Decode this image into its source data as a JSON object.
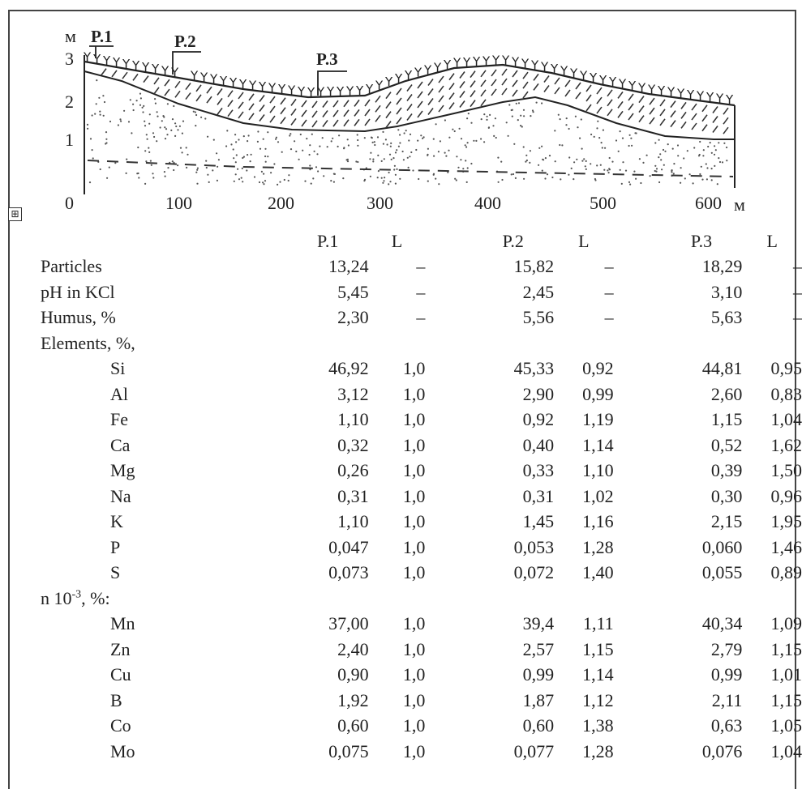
{
  "figure": {
    "y_unit": "м",
    "x_unit": "м",
    "y_ticks": [
      "1",
      "2",
      "3"
    ],
    "x_ticks": [
      "0",
      "100",
      "200",
      "300",
      "400",
      "500",
      "600"
    ],
    "point_labels": [
      "P.1",
      "P.2",
      "P.3"
    ],
    "move_handle_icon": "move-cross-icon",
    "move_handle_glyph": "⊞"
  },
  "table": {
    "headers": [
      "P.1",
      "L",
      "P.2",
      "L",
      "P.3",
      "L"
    ],
    "rows": [
      {
        "name": "Particles",
        "indent": false,
        "v": [
          "13,24",
          "–",
          "15,82",
          "–",
          "18,29",
          "–"
        ]
      },
      {
        "name": "pH in KCl",
        "indent": false,
        "v": [
          "5,45",
          "–",
          "2,45",
          "–",
          "3,10",
          "–"
        ]
      },
      {
        "name": "Humus, %",
        "indent": false,
        "v": [
          "2,30",
          "–",
          "5,56",
          "–",
          "5,63",
          "–"
        ]
      },
      {
        "name": "Elements, %,",
        "indent": false,
        "v": [
          "",
          "",
          "",
          "",
          "",
          ""
        ]
      },
      {
        "name": "Si",
        "indent": true,
        "v": [
          "46,92",
          "1,0",
          "45,33",
          "0,92",
          "44,81",
          "0,95"
        ]
      },
      {
        "name": "Al",
        "indent": true,
        "v": [
          "3,12",
          "1,0",
          "2,90",
          "0,99",
          "2,60",
          "0,83"
        ]
      },
      {
        "name": "Fe",
        "indent": true,
        "v": [
          "1,10",
          "1,0",
          "0,92",
          "1,19",
          "1,15",
          "1,04"
        ]
      },
      {
        "name": "Ca",
        "indent": true,
        "v": [
          "0,32",
          "1,0",
          "0,40",
          "1,14",
          "0,52",
          "1,62"
        ]
      },
      {
        "name": "Mg",
        "indent": true,
        "v": [
          "0,26",
          "1,0",
          "0,33",
          "1,10",
          "0,39",
          "1,50"
        ]
      },
      {
        "name": "Na",
        "indent": true,
        "v": [
          "0,31",
          "1,0",
          "0,31",
          "1,02",
          "0,30",
          "0,96"
        ]
      },
      {
        "name": "K",
        "indent": true,
        "v": [
          "1,10",
          "1,0",
          "1,45",
          "1,16",
          "2,15",
          "1,95"
        ]
      },
      {
        "name": "P",
        "indent": true,
        "v": [
          "0,047",
          "1,0",
          "0,053",
          "1,28",
          "0,060",
          "1,46"
        ]
      },
      {
        "name": "S",
        "indent": true,
        "v": [
          "0,073",
          "1,0",
          "0,072",
          "1,40",
          "0,055",
          "0,89"
        ]
      },
      {
        "name": "n 10",
        "sup": "-3",
        "suffix": ", %:",
        "indent": false,
        "v": [
          "",
          "",
          "",
          "",
          "",
          ""
        ]
      },
      {
        "name": "Mn",
        "indent": true,
        "v": [
          "37,00",
          "1,0",
          "39,4",
          "1,11",
          "40,34",
          "1,09"
        ]
      },
      {
        "name": "Zn",
        "indent": true,
        "v": [
          "2,40",
          "1,0",
          "2,57",
          "1,15",
          "2,79",
          "1,15"
        ]
      },
      {
        "name": "Cu",
        "indent": true,
        "v": [
          "0,90",
          "1,0",
          "0,99",
          "1,14",
          "0,99",
          "1,01"
        ]
      },
      {
        "name": "B",
        "indent": true,
        "v": [
          "1,92",
          "1,0",
          "1,87",
          "1,12",
          "2,11",
          "1,15"
        ]
      },
      {
        "name": "Co",
        "indent": true,
        "v": [
          "0,60",
          "1,0",
          "0,60",
          "1,38",
          "0,63",
          "1,05"
        ]
      },
      {
        "name": "Mo",
        "indent": true,
        "v": [
          "0,075",
          "1,0",
          "0,077",
          "1,28",
          "0,076",
          "1,04"
        ]
      }
    ]
  }
}
